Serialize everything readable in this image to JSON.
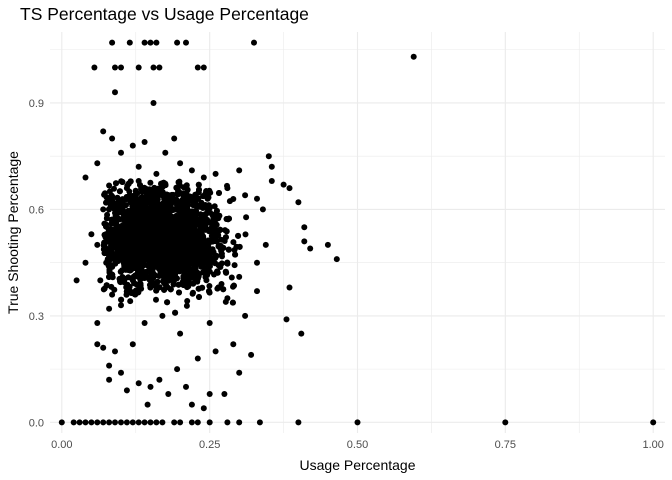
{
  "chart_data": {
    "type": "scatter",
    "title": "TS Percentage vs Usage Percentage",
    "xlabel": "Usage Percentage",
    "ylabel": "True Shooting Percentage",
    "xlim": [
      -0.02,
      1.02
    ],
    "ylim": [
      -0.03,
      1.1
    ],
    "x_ticks": [
      0.0,
      0.25,
      0.5,
      0.75,
      1.0
    ],
    "x_tick_labels": [
      "0.00",
      "0.25",
      "0.50",
      "0.75",
      "1.00"
    ],
    "y_ticks": [
      0.0,
      0.3,
      0.6,
      0.9
    ],
    "y_tick_labels": [
      "0.0",
      "0.3",
      "0.6",
      "0.9"
    ],
    "grid": true,
    "legend": "none",
    "point_color": "#000000",
    "panel_background": "#ffffff",
    "grid_color": "#ebebeb",
    "points": [
      [
        0.595,
        1.03
      ],
      [
        0.085,
        1.07
      ],
      [
        0.115,
        1.07
      ],
      [
        0.14,
        1.07
      ],
      [
        0.15,
        1.07
      ],
      [
        0.16,
        1.07
      ],
      [
        0.195,
        1.07
      ],
      [
        0.21,
        1.07
      ],
      [
        0.325,
        1.07
      ],
      [
        0.055,
        1.0
      ],
      [
        0.09,
        1.0
      ],
      [
        0.1,
        1.0
      ],
      [
        0.13,
        1.0
      ],
      [
        0.155,
        1.0
      ],
      [
        0.165,
        1.0
      ],
      [
        0.23,
        1.0
      ],
      [
        0.24,
        1.0
      ],
      [
        0.09,
        0.93
      ],
      [
        0.155,
        0.9
      ],
      [
        0.04,
        0.69
      ],
      [
        0.06,
        0.73
      ],
      [
        0.07,
        0.82
      ],
      [
        0.085,
        0.8
      ],
      [
        0.1,
        0.76
      ],
      [
        0.12,
        0.78
      ],
      [
        0.13,
        0.72
      ],
      [
        0.14,
        0.79
      ],
      [
        0.175,
        0.76
      ],
      [
        0.19,
        0.8
      ],
      [
        0.2,
        0.73
      ],
      [
        0.22,
        0.71
      ],
      [
        0.26,
        0.7
      ],
      [
        0.3,
        0.71
      ],
      [
        0.35,
        0.75
      ],
      [
        0.355,
        0.72
      ],
      [
        0.355,
        0.68
      ],
      [
        0.375,
        0.67
      ],
      [
        0.385,
        0.66
      ],
      [
        0.4,
        0.62
      ],
      [
        0.41,
        0.55
      ],
      [
        0.41,
        0.51
      ],
      [
        0.42,
        0.49
      ],
      [
        0.45,
        0.5
      ],
      [
        0.465,
        0.46
      ],
      [
        0.385,
        0.38
      ],
      [
        0.38,
        0.29
      ],
      [
        0.405,
        0.25
      ],
      [
        0.025,
        0.4
      ],
      [
        0.04,
        0.45
      ],
      [
        0.05,
        0.53
      ],
      [
        0.065,
        0.4
      ],
      [
        0.06,
        0.28
      ],
      [
        0.06,
        0.22
      ],
      [
        0.07,
        0.21
      ],
      [
        0.08,
        0.16
      ],
      [
        0.08,
        0.12
      ],
      [
        0.09,
        0.2
      ],
      [
        0.1,
        0.14
      ],
      [
        0.11,
        0.09
      ],
      [
        0.13,
        0.11
      ],
      [
        0.145,
        0.05
      ],
      [
        0.15,
        0.1
      ],
      [
        0.165,
        0.12
      ],
      [
        0.18,
        0.08
      ],
      [
        0.195,
        0.15
      ],
      [
        0.21,
        0.1
      ],
      [
        0.22,
        0.05
      ],
      [
        0.24,
        0.04
      ],
      [
        0.25,
        0.08
      ],
      [
        0.275,
        0.08
      ],
      [
        0.3,
        0.14
      ],
      [
        0.32,
        0.19
      ],
      [
        0.29,
        0.22
      ],
      [
        0.26,
        0.2
      ],
      [
        0.23,
        0.18
      ],
      [
        0.2,
        0.25
      ],
      [
        0.12,
        0.22
      ],
      [
        0.14,
        0.28
      ],
      [
        0.17,
        0.3
      ],
      [
        0.25,
        0.28
      ],
      [
        0.28,
        0.35
      ],
      [
        0.31,
        0.3
      ],
      [
        0.33,
        0.37
      ],
      [
        0.1,
        0.33
      ],
      [
        0.08,
        0.32
      ],
      [
        0.09,
        0.59
      ],
      [
        0.11,
        0.66
      ],
      [
        0.13,
        0.68
      ],
      [
        0.16,
        0.7
      ],
      [
        0.24,
        0.69
      ],
      [
        0.28,
        0.66
      ],
      [
        0.31,
        0.64
      ],
      [
        0.33,
        0.63
      ],
      [
        0.34,
        0.6
      ],
      [
        0.345,
        0.5
      ],
      [
        0.33,
        0.45
      ],
      [
        0.3,
        0.41
      ],
      [
        0.27,
        0.39
      ],
      [
        0.06,
        0.5
      ],
      [
        0.07,
        0.6
      ],
      [
        0.075,
        0.45
      ],
      [
        0.085,
        0.36
      ],
      [
        0.0,
        0.0
      ],
      [
        0.02,
        0.0
      ],
      [
        0.03,
        0.0
      ],
      [
        0.04,
        0.0
      ],
      [
        0.05,
        0.0
      ],
      [
        0.06,
        0.0
      ],
      [
        0.07,
        0.0
      ],
      [
        0.08,
        0.0
      ],
      [
        0.09,
        0.0
      ],
      [
        0.1,
        0.0
      ],
      [
        0.11,
        0.0
      ],
      [
        0.12,
        0.0
      ],
      [
        0.13,
        0.0
      ],
      [
        0.14,
        0.0
      ],
      [
        0.15,
        0.0
      ],
      [
        0.16,
        0.0
      ],
      [
        0.17,
        0.0
      ],
      [
        0.19,
        0.0
      ],
      [
        0.2,
        0.0
      ],
      [
        0.22,
        0.0
      ],
      [
        0.23,
        0.0
      ],
      [
        0.25,
        0.0
      ],
      [
        0.28,
        0.0
      ],
      [
        0.3,
        0.0
      ],
      [
        0.335,
        0.0
      ],
      [
        0.4,
        0.0
      ],
      [
        0.5,
        0.0
      ],
      [
        0.75,
        0.0
      ],
      [
        1.0,
        0.0
      ]
    ],
    "cluster": {
      "description_of_dense_region": "many points around usage 0.08-0.33, TS 0.35-0.66",
      "x_center": 0.17,
      "y_center": 0.52,
      "x_spread": 0.07,
      "y_spread": 0.1
    }
  }
}
